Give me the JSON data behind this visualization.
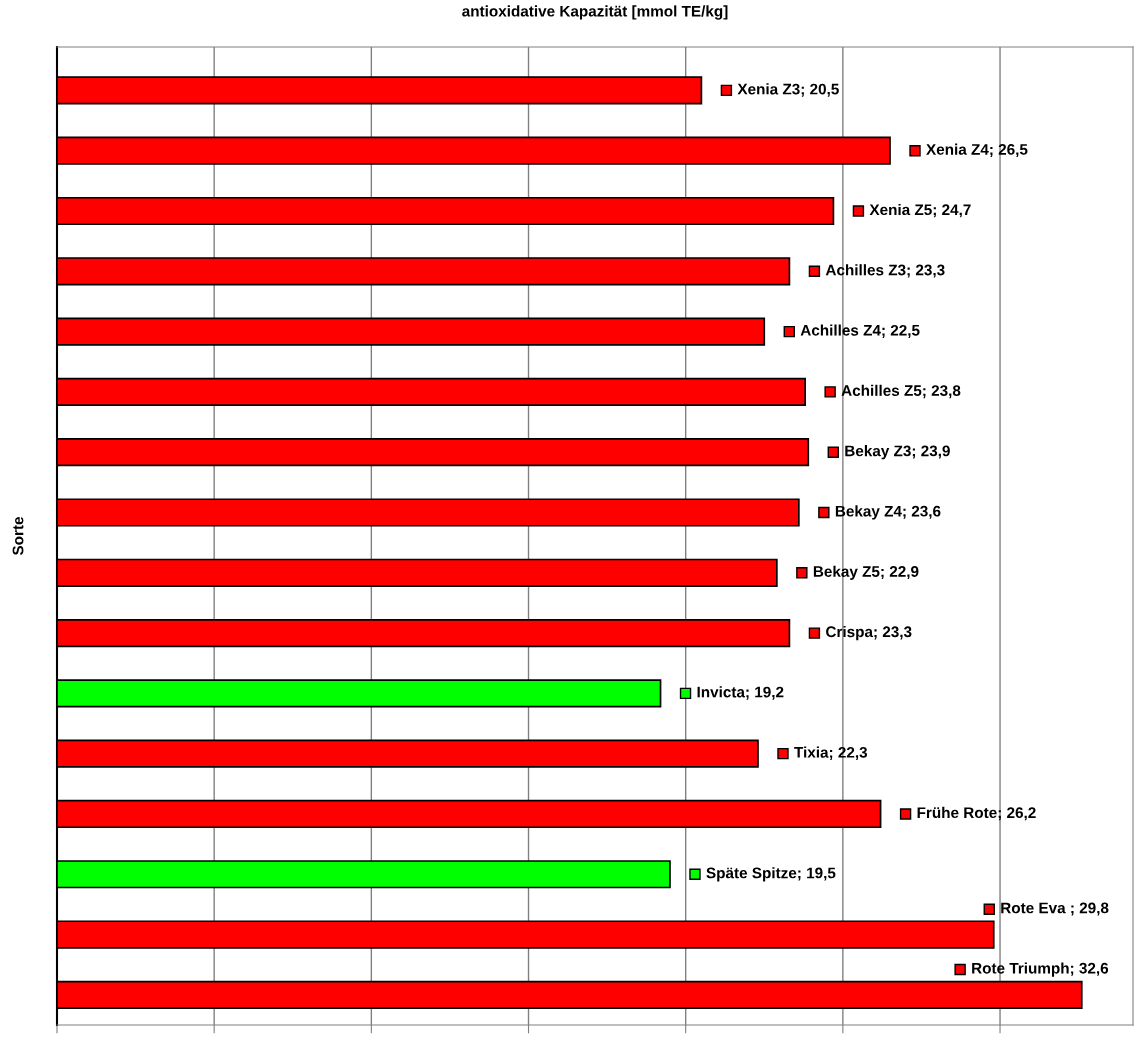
{
  "chart_data": {
    "type": "bar",
    "orientation": "horizontal",
    "title": "antioxidative Kapazität [mmol TE/kg]",
    "ylabel": "Sorte",
    "categories": [
      null,
      null,
      null,
      null,
      null,
      null,
      null,
      null,
      null,
      null,
      null,
      null,
      null,
      null,
      null,
      null
    ],
    "values": [
      20.5,
      26.5,
      24.7,
      23.3,
      22.5,
      23.8,
      23.9,
      23.6,
      22.9,
      23.3,
      19.2,
      22.3,
      26.2,
      19.5,
      29.8,
      32.6
    ],
    "value_labels": [
      "Xenia Z3; 20,5",
      "Xenia Z4; 26,5",
      "Xenia Z5; 24,7",
      "Achilles Z3; 23,3",
      "Achilles Z4; 22,5",
      "Achilles Z5; 23,8",
      "Bekay Z3; 23,9",
      "Bekay Z4; 23,6",
      "Bekay Z5; 22,9",
      "Crispa; 23,3",
      "Invicta; 19,2",
      "Tixia; 22,3",
      "Frühe Rote; 26,2",
      "Späte Spitze; 19,5",
      "Rote Eva ; 29,8",
      "Rote Triumph; 32,6"
    ],
    "colors": [
      "#ff0000",
      "#ff0000",
      "#ff0000",
      "#ff0000",
      "#ff0000",
      "#ff0000",
      "#ff0000",
      "#ff0000",
      "#ff0000",
      "#ff0000",
      "#00ff00",
      "#ff0000",
      "#ff0000",
      "#00ff00",
      "#ff0000",
      "#ff0000"
    ],
    "grid": "x",
    "tick_labels": false
  }
}
